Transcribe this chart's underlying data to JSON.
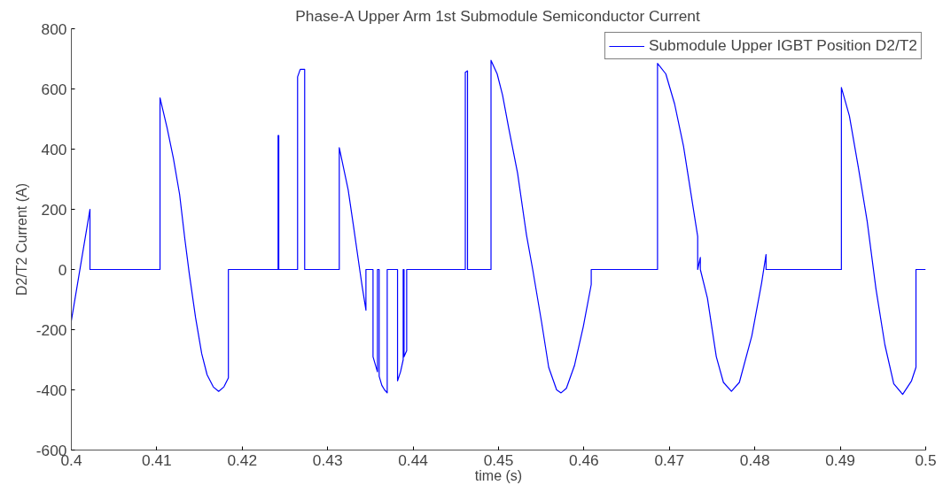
{
  "chart_data": {
    "type": "line",
    "title": "Phase-A Upper Arm 1st Submodule Semiconductor Current",
    "xlabel": "time (s)",
    "ylabel": "D2/T2 Current (A)",
    "xlim": [
      0.4,
      0.5
    ],
    "ylim": [
      -600,
      800
    ],
    "xticks": [
      0.4,
      0.41,
      0.42,
      0.43,
      0.44,
      0.45,
      0.46,
      0.47,
      0.48,
      0.49,
      0.5
    ],
    "yticks": [
      -600,
      -400,
      -200,
      0,
      200,
      400,
      600,
      800
    ],
    "grid": false,
    "legend": "top right",
    "line_style": "solid",
    "marker": "none",
    "series": [
      {
        "name": "Submodule Upper IGBT Position D2/T2",
        "color": "#0000ff",
        "x": [
          0.4,
          0.40218,
          0.40218,
          0.41038,
          0.41038,
          0.41121,
          0.41194,
          0.41267,
          0.41329,
          0.41381,
          0.41454,
          0.41526,
          0.41589,
          0.41661,
          0.41724,
          0.41786,
          0.41838,
          0.41838,
          0.4242,
          0.4242,
          0.42428,
          0.42428,
          0.42648,
          0.42648,
          0.42679,
          0.42731,
          0.42731,
          0.43136,
          0.43136,
          0.4324,
          0.43302,
          0.43375,
          0.43406,
          0.43448,
          0.43448,
          0.43531,
          0.43531,
          0.43583,
          0.43583,
          0.43603,
          0.43603,
          0.43634,
          0.43666,
          0.43697,
          0.43697,
          0.43818,
          0.43818,
          0.43853,
          0.43884,
          0.43884,
          0.43894,
          0.43894,
          0.43925,
          0.43925,
          0.44611,
          0.44611,
          0.44637,
          0.44637,
          0.44912,
          0.44912,
          0.44984,
          0.45047,
          0.45119,
          0.45223,
          0.45327,
          0.454,
          0.45504,
          0.45587,
          0.4568,
          0.45732,
          0.45794,
          0.45888,
          0.45992,
          0.46085,
          0.46085,
          0.46861,
          0.46861,
          0.46958,
          0.47061,
          0.47165,
          0.47248,
          0.47331,
          0.47331,
          0.47362,
          0.47362,
          0.47445,
          0.47549,
          0.47632,
          0.47726,
          0.47819,
          0.47965,
          0.48079,
          0.48131,
          0.48131,
          0.49013,
          0.49013,
          0.49107,
          0.49211,
          0.49315,
          0.49418,
          0.49522,
          0.49626,
          0.4973,
          0.49834,
          0.49886,
          0.49886,
          0.5
        ],
        "values": [
          -170,
          200,
          0,
          0,
          570,
          470,
          370,
          250,
          100,
          -15,
          -160,
          -280,
          -350,
          -390,
          -405,
          -390,
          -360,
          0,
          0,
          445,
          445,
          0,
          0,
          640,
          665,
          665,
          0,
          0,
          405,
          265,
          145,
          0,
          -60,
          -135,
          0,
          0,
          -290,
          -340,
          0,
          0,
          -355,
          -385,
          -400,
          -410,
          0,
          0,
          -370,
          -340,
          -300,
          0,
          0,
          -290,
          -270,
          0,
          0,
          655,
          660,
          0,
          0,
          695,
          650,
          580,
          470,
          320,
          115,
          0,
          -175,
          -325,
          -400,
          -410,
          -395,
          -320,
          -190,
          -50,
          0,
          0,
          685,
          650,
          550,
          410,
          260,
          110,
          0,
          40,
          0,
          -95,
          -290,
          -375,
          -405,
          -375,
          -220,
          -45,
          50,
          0,
          0,
          605,
          510,
          340,
          160,
          -65,
          -250,
          -380,
          -415,
          -370,
          -325,
          0,
          0
        ]
      }
    ]
  }
}
